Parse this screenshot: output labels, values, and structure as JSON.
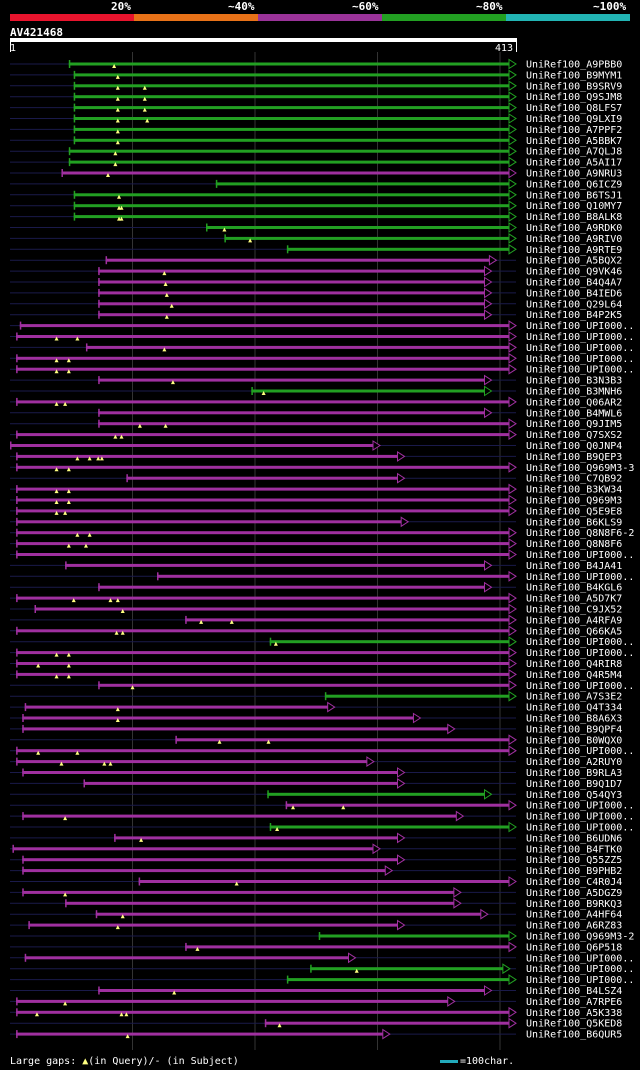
{
  "legend": [
    {
      "label": "20%",
      "color": "#e8142d"
    },
    {
      "label": "~40%",
      "color": "#e87218"
    },
    {
      "label": "~60%",
      "color": "#9a3399"
    },
    {
      "label": "~80%",
      "color": "#22a022"
    },
    {
      "label": "~100%",
      "color": "#22b4b4"
    }
  ],
  "query": {
    "name": "AV421468",
    "start": "1",
    "end": "413",
    "length": 413
  },
  "colors": {
    "green": "#22a022",
    "magenta": "#a030a0",
    "line": "#1a1a4a",
    "triangle": "#ffff80"
  },
  "footer": {
    "gaps_label": "Large gaps: ",
    "query_marker": "▲",
    "query_text": "(in Query)/- (in Subject)",
    "scale_text": "=100char."
  },
  "hits": [
    {
      "name": "UniRef100_A9PBB0",
      "color": "green",
      "start": 48,
      "end": 413,
      "marks": [
        85
      ]
    },
    {
      "name": "UniRef100_B9MYM1",
      "color": "green",
      "start": 52,
      "end": 413,
      "marks": [
        88
      ]
    },
    {
      "name": "UniRef100_B9SRV9",
      "color": "green",
      "start": 52,
      "end": 413,
      "marks": [
        88,
        110
      ]
    },
    {
      "name": "UniRef100_Q9SJM8",
      "color": "green",
      "start": 52,
      "end": 413,
      "marks": [
        88,
        110
      ]
    },
    {
      "name": "UniRef100_Q8LFS7",
      "color": "green",
      "start": 52,
      "end": 413,
      "marks": [
        88,
        110
      ]
    },
    {
      "name": "UniRef100_Q9LXI9",
      "color": "green",
      "start": 52,
      "end": 413,
      "marks": [
        88,
        112
      ]
    },
    {
      "name": "UniRef100_A7PPF2",
      "color": "green",
      "start": 52,
      "end": 413,
      "marks": [
        88
      ]
    },
    {
      "name": "UniRef100_A5BBK7",
      "color": "green",
      "start": 52,
      "end": 413,
      "marks": [
        88
      ]
    },
    {
      "name": "UniRef100_A7QLJ8",
      "color": "green",
      "start": 48,
      "end": 413,
      "marks": [
        86
      ]
    },
    {
      "name": "UniRef100_A5AI17",
      "color": "green",
      "start": 48,
      "end": 413,
      "marks": [
        86
      ]
    },
    {
      "name": "UniRef100_A9NRU3",
      "color": "magenta",
      "start": 42,
      "end": 413,
      "marks": [
        80
      ]
    },
    {
      "name": "UniRef100_Q6ICZ9",
      "color": "green",
      "start": 168,
      "end": 413,
      "marks": []
    },
    {
      "name": "UniRef100_B6TSJ1",
      "color": "green",
      "start": 52,
      "end": 413,
      "marks": [
        89
      ]
    },
    {
      "name": "UniRef100_Q10MY7",
      "color": "green",
      "start": 52,
      "end": 413,
      "marks": [
        89,
        91
      ]
    },
    {
      "name": "UniRef100_B8ALK8",
      "color": "green",
      "start": 52,
      "end": 413,
      "marks": [
        89,
        91
      ]
    },
    {
      "name": "UniRef100_A9RDK0",
      "color": "green",
      "start": 160,
      "end": 413,
      "marks": [
        175
      ]
    },
    {
      "name": "UniRef100_A9RIV0",
      "color": "green",
      "start": 175,
      "end": 413,
      "marks": [
        196
      ]
    },
    {
      "name": "UniRef100_A9RTE9",
      "color": "green",
      "start": 226,
      "end": 413,
      "marks": []
    },
    {
      "name": "UniRef100_A5BQX2",
      "color": "magenta",
      "start": 78,
      "end": 397,
      "marks": []
    },
    {
      "name": "UniRef100_Q9VK46",
      "color": "magenta",
      "start": 72,
      "end": 393,
      "marks": [
        126
      ]
    },
    {
      "name": "UniRef100_B4Q4A7",
      "color": "magenta",
      "start": 72,
      "end": 393,
      "marks": [
        127
      ]
    },
    {
      "name": "UniRef100_B4IED6",
      "color": "magenta",
      "start": 72,
      "end": 393,
      "marks": [
        128
      ]
    },
    {
      "name": "UniRef100_Q29L64",
      "color": "magenta",
      "start": 72,
      "end": 393,
      "marks": [
        132
      ]
    },
    {
      "name": "UniRef100_B4P2K5",
      "color": "magenta",
      "start": 72,
      "end": 393,
      "marks": [
        128
      ]
    },
    {
      "name": "UniRef100_UPI000..",
      "color": "magenta",
      "start": 8,
      "end": 413,
      "marks": []
    },
    {
      "name": "UniRef100_UPI000..",
      "color": "magenta",
      "start": 5,
      "end": 413,
      "marks": [
        38,
        55
      ]
    },
    {
      "name": "UniRef100_UPI000..",
      "color": "magenta",
      "start": 62,
      "end": 413,
      "marks": [
        126
      ]
    },
    {
      "name": "UniRef100_UPI000..",
      "color": "magenta",
      "start": 5,
      "end": 413,
      "marks": [
        38,
        48
      ]
    },
    {
      "name": "UniRef100_UPI000..",
      "color": "magenta",
      "start": 5,
      "end": 413,
      "marks": [
        38,
        48
      ]
    },
    {
      "name": "UniRef100_B3N3B3",
      "color": "magenta",
      "start": 72,
      "end": 393,
      "marks": [
        133
      ]
    },
    {
      "name": "UniRef100_B3MNH6",
      "color": "green",
      "start": 197,
      "end": 393,
      "marks": [
        207
      ]
    },
    {
      "name": "UniRef100_Q06AR2",
      "color": "magenta",
      "start": 5,
      "end": 413,
      "marks": [
        38,
        45
      ]
    },
    {
      "name": "UniRef100_B4MWL6",
      "color": "magenta",
      "start": 72,
      "end": 393,
      "marks": []
    },
    {
      "name": "UniRef100_Q9JIM5",
      "color": "magenta",
      "start": 72,
      "end": 413,
      "marks": [
        106,
        127
      ]
    },
    {
      "name": "UniRef100_Q7SXS2",
      "color": "magenta",
      "start": 5,
      "end": 413,
      "marks": [
        86,
        91
      ]
    },
    {
      "name": "UniRef100_Q0JNP4",
      "color": "magenta",
      "start": 0,
      "end": 302,
      "marks": []
    },
    {
      "name": "UniRef100_B9QEP3",
      "color": "magenta",
      "start": 5,
      "end": 322,
      "marks": [
        55,
        65,
        72,
        75
      ]
    },
    {
      "name": "UniRef100_Q969M3-3",
      "color": "magenta",
      "start": 5,
      "end": 413,
      "marks": [
        38,
        48
      ]
    },
    {
      "name": "UniRef100_C7QB92",
      "color": "magenta",
      "start": 95,
      "end": 322,
      "marks": []
    },
    {
      "name": "UniRef100_B3KW34",
      "color": "magenta",
      "start": 5,
      "end": 413,
      "marks": [
        38,
        48
      ]
    },
    {
      "name": "UniRef100_Q969M3",
      "color": "magenta",
      "start": 5,
      "end": 413,
      "marks": [
        38,
        48
      ]
    },
    {
      "name": "UniRef100_Q5E9E8",
      "color": "magenta",
      "start": 5,
      "end": 413,
      "marks": [
        38,
        45
      ]
    },
    {
      "name": "UniRef100_B6KLS9",
      "color": "magenta",
      "start": 5,
      "end": 325,
      "marks": []
    },
    {
      "name": "UniRef100_Q8N8F6-2",
      "color": "magenta",
      "start": 5,
      "end": 413,
      "marks": [
        55,
        65
      ]
    },
    {
      "name": "UniRef100_Q8N8F6",
      "color": "magenta",
      "start": 5,
      "end": 413,
      "marks": [
        48,
        62
      ]
    },
    {
      "name": "UniRef100_UPI000..",
      "color": "magenta",
      "start": 5,
      "end": 413,
      "marks": []
    },
    {
      "name": "UniRef100_B4JA41",
      "color": "magenta",
      "start": 45,
      "end": 393,
      "marks": []
    },
    {
      "name": "UniRef100_UPI000..",
      "color": "magenta",
      "start": 120,
      "end": 413,
      "marks": []
    },
    {
      "name": "UniRef100_B4KGL6",
      "color": "magenta",
      "start": 72,
      "end": 393,
      "marks": []
    },
    {
      "name": "UniRef100_A5D7K7",
      "color": "magenta",
      "start": 5,
      "end": 413,
      "marks": [
        52,
        82,
        88
      ]
    },
    {
      "name": "UniRef100_C9JX52",
      "color": "magenta",
      "start": 20,
      "end": 413,
      "marks": [
        92
      ]
    },
    {
      "name": "UniRef100_A4RFA9",
      "color": "magenta",
      "start": 143,
      "end": 413,
      "marks": [
        156,
        181
      ]
    },
    {
      "name": "UniRef100_Q66KA5",
      "color": "magenta",
      "start": 5,
      "end": 413,
      "marks": [
        87,
        92
      ]
    },
    {
      "name": "UniRef100_UPI000..",
      "color": "green",
      "start": 212,
      "end": 413,
      "marks": [
        217
      ]
    },
    {
      "name": "UniRef100_UPI000..",
      "color": "magenta",
      "start": 5,
      "end": 413,
      "marks": [
        38,
        48
      ]
    },
    {
      "name": "UniRef100_Q4RIR8",
      "color": "magenta",
      "start": 5,
      "end": 413,
      "marks": [
        23,
        48
      ]
    },
    {
      "name": "UniRef100_Q4R5M4",
      "color": "magenta",
      "start": 5,
      "end": 413,
      "marks": [
        38,
        48
      ]
    },
    {
      "name": "UniRef100_UPI000..",
      "color": "magenta",
      "start": 72,
      "end": 413,
      "marks": [
        100
      ]
    },
    {
      "name": "UniRef100_A7S3E2",
      "color": "green",
      "start": 257,
      "end": 413,
      "marks": []
    },
    {
      "name": "UniRef100_Q4T334",
      "color": "magenta",
      "start": 12,
      "end": 265,
      "marks": [
        88
      ]
    },
    {
      "name": "UniRef100_B8A6X3",
      "color": "magenta",
      "start": 10,
      "end": 335,
      "marks": [
        88
      ]
    },
    {
      "name": "UniRef100_B9QPF4",
      "color": "magenta",
      "start": 10,
      "end": 363,
      "marks": []
    },
    {
      "name": "UniRef100_B0WQX0",
      "color": "magenta",
      "start": 135,
      "end": 413,
      "marks": [
        171,
        211
      ]
    },
    {
      "name": "UniRef100_UPI000..",
      "color": "magenta",
      "start": 5,
      "end": 413,
      "marks": [
        23,
        55
      ]
    },
    {
      "name": "UniRef100_A2RUY0",
      "color": "magenta",
      "start": 5,
      "end": 297,
      "marks": [
        42,
        77,
        82
      ]
    },
    {
      "name": "UniRef100_B9RLA3",
      "color": "magenta",
      "start": 10,
      "end": 322,
      "marks": []
    },
    {
      "name": "UniRef100_B9Q1D7",
      "color": "magenta",
      "start": 60,
      "end": 322,
      "marks": []
    },
    {
      "name": "UniRef100_Q54QY3",
      "color": "green",
      "start": 210,
      "end": 393,
      "marks": []
    },
    {
      "name": "UniRef100_UPI000..",
      "color": "magenta",
      "start": 225,
      "end": 413,
      "marks": [
        231,
        272
      ]
    },
    {
      "name": "UniRef100_UPI000..",
      "color": "magenta",
      "start": 10,
      "end": 370,
      "marks": [
        45
      ]
    },
    {
      "name": "UniRef100_UPI000..",
      "color": "green",
      "start": 212,
      "end": 413,
      "marks": [
        218
      ]
    },
    {
      "name": "UniRef100_B6UDN6",
      "color": "magenta",
      "start": 85,
      "end": 322,
      "marks": [
        107
      ]
    },
    {
      "name": "UniRef100_B4FTK0",
      "color": "magenta",
      "start": 2,
      "end": 302,
      "marks": []
    },
    {
      "name": "UniRef100_Q55ZZ5",
      "color": "magenta",
      "start": 10,
      "end": 322,
      "marks": []
    },
    {
      "name": "UniRef100_B9PHB2",
      "color": "magenta",
      "start": 10,
      "end": 312,
      "marks": []
    },
    {
      "name": "UniRef100_C4R0J4",
      "color": "magenta",
      "start": 105,
      "end": 413,
      "marks": [
        185
      ]
    },
    {
      "name": "UniRef100_A5DGZ9",
      "color": "magenta",
      "start": 10,
      "end": 368,
      "marks": [
        45
      ]
    },
    {
      "name": "UniRef100_B9RKQ3",
      "color": "magenta",
      "start": 45,
      "end": 368,
      "marks": []
    },
    {
      "name": "UniRef100_A4HF64",
      "color": "magenta",
      "start": 70,
      "end": 390,
      "marks": [
        92
      ]
    },
    {
      "name": "UniRef100_A6RZ83",
      "color": "magenta",
      "start": 15,
      "end": 322,
      "marks": [
        88
      ]
    },
    {
      "name": "UniRef100_Q969M3-2",
      "color": "green",
      "start": 252,
      "end": 413,
      "marks": []
    },
    {
      "name": "UniRef100_Q6P518",
      "color": "magenta",
      "start": 143,
      "end": 413,
      "marks": [
        153
      ]
    },
    {
      "name": "UniRef100_UPI000..",
      "color": "magenta",
      "start": 12,
      "end": 282,
      "marks": []
    },
    {
      "name": "UniRef100_UPI000..",
      "color": "green",
      "start": 245,
      "end": 408,
      "marks": [
        283
      ]
    },
    {
      "name": "UniRef100_UPI000..",
      "color": "green",
      "start": 226,
      "end": 413,
      "marks": []
    },
    {
      "name": "UniRef100_B4LSZ4",
      "color": "magenta",
      "start": 72,
      "end": 393,
      "marks": [
        134
      ]
    },
    {
      "name": "UniRef100_A7RPE6",
      "color": "magenta",
      "start": 5,
      "end": 363,
      "marks": [
        45
      ]
    },
    {
      "name": "UniRef100_A5K338",
      "color": "magenta",
      "start": 5,
      "end": 413,
      "marks": [
        22,
        91,
        95
      ]
    },
    {
      "name": "UniRef100_Q5KED8",
      "color": "magenta",
      "start": 208,
      "end": 413,
      "marks": [
        220
      ]
    },
    {
      "name": "UniRef100_B6QUR5",
      "color": "magenta",
      "start": 5,
      "end": 310,
      "marks": [
        96
      ]
    }
  ]
}
